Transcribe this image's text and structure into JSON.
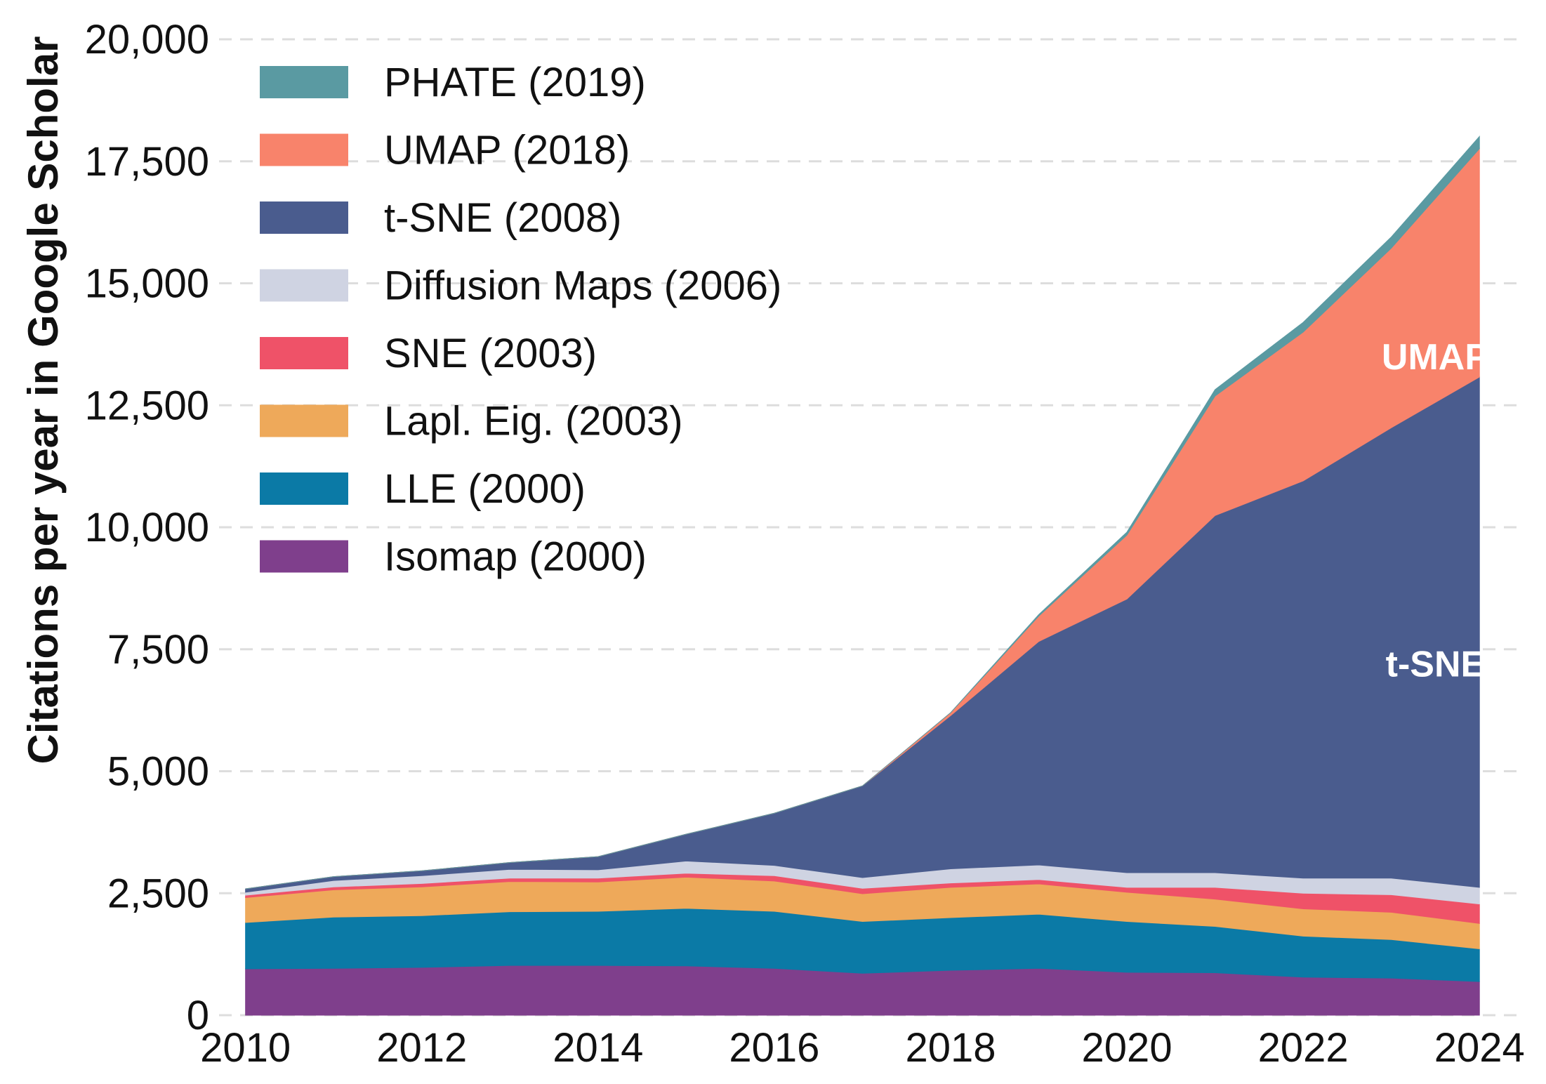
{
  "chart_data": {
    "type": "area",
    "stacked": true,
    "title": "",
    "xlabel": "",
    "ylabel": "Citations per year in Google Scholar",
    "x": [
      2010,
      2011,
      2012,
      2013,
      2014,
      2015,
      2016,
      2017,
      2018,
      2019,
      2020,
      2021,
      2022,
      2023,
      2024
    ],
    "xlim": [
      2009.7,
      2024.5
    ],
    "ylim": [
      0,
      20000
    ],
    "x_ticks": [
      2010,
      2012,
      2014,
      2016,
      2018,
      2020,
      2022,
      2024
    ],
    "x_tick_labels": [
      "2010",
      "2012",
      "2014",
      "2016",
      "2018",
      "2020",
      "2022",
      "2024"
    ],
    "y_ticks": [
      0,
      2500,
      5000,
      7500,
      10000,
      12500,
      15000,
      17500,
      20000
    ],
    "y_tick_labels": [
      "0",
      "2,500",
      "5,000",
      "7,500",
      "10,000",
      "12,500",
      "15,000",
      "17,500",
      "20,000"
    ],
    "grid": "horizontal dashed",
    "legend_position": "top-left",
    "series": [
      {
        "name": "Isomap (2000)",
        "color": "#7f3f8c",
        "values": [
          950,
          960,
          980,
          1020,
          1020,
          1010,
          960,
          860,
          920,
          960,
          880,
          870,
          780,
          760,
          690
        ]
      },
      {
        "name": "LLE (2000)",
        "color": "#0b7aa6",
        "values": [
          950,
          1050,
          1060,
          1100,
          1110,
          1180,
          1170,
          1060,
          1080,
          1110,
          1040,
          950,
          840,
          790,
          670
        ]
      },
      {
        "name": "Lapl. Eig. (2003)",
        "color": "#eea95a",
        "values": [
          510,
          560,
          590,
          620,
          600,
          640,
          620,
          570,
          620,
          620,
          600,
          560,
          560,
          560,
          520
        ]
      },
      {
        "name": "SNE (2003)",
        "color": "#ef5268",
        "values": [
          50,
          60,
          70,
          70,
          80,
          80,
          110,
          110,
          90,
          90,
          100,
          240,
          320,
          360,
          400
        ]
      },
      {
        "name": "Diffusion Maps (2006)",
        "color": "#cfd3e2",
        "values": [
          60,
          130,
          160,
          180,
          170,
          250,
          210,
          220,
          290,
          300,
          300,
          300,
          310,
          340,
          340
        ]
      },
      {
        "name": "t-SNE (2008)",
        "color": "#4a5c8e",
        "values": [
          70,
          80,
          100,
          140,
          270,
          550,
          1070,
          1880,
          3140,
          4580,
          5610,
          7320,
          8140,
          9230,
          10460
        ]
      },
      {
        "name": "UMAP (2018)",
        "color": "#f8836b",
        "values": [
          0,
          0,
          0,
          0,
          0,
          0,
          0,
          0,
          60,
          520,
          1310,
          2450,
          3050,
          3680,
          4680
        ]
      },
      {
        "name": "PHATE (2019)",
        "color": "#5a9aa2",
        "values": [
          0,
          0,
          0,
          0,
          0,
          0,
          0,
          0,
          0,
          30,
          60,
          130,
          200,
          230,
          250
        ]
      }
    ],
    "annotations": [
      {
        "text": "UMAP",
        "x": 2023.5,
        "y": 13500,
        "color": "#ffffff"
      },
      {
        "text": "t-SNE",
        "x": 2023.5,
        "y": 7200,
        "color": "#ffffff"
      }
    ]
  }
}
